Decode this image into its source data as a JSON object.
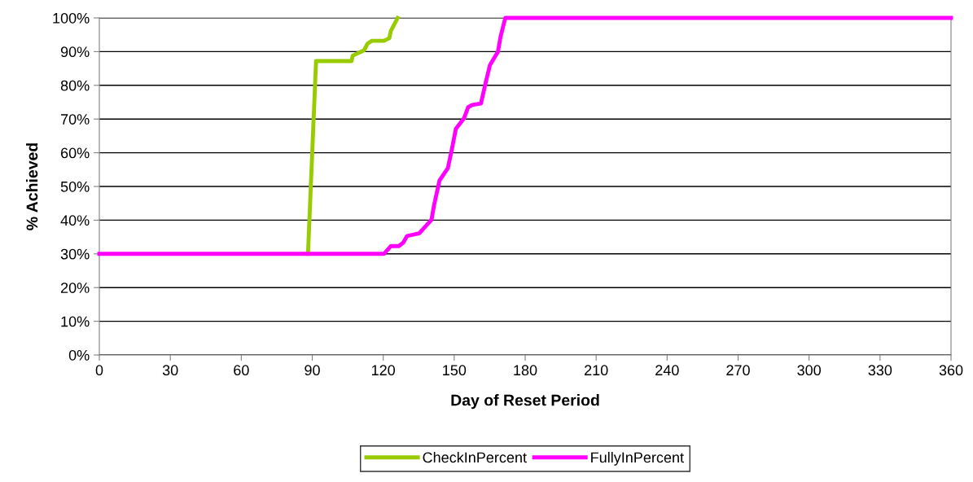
{
  "chart_data": {
    "type": "line",
    "xlabel": "Day of Reset Period",
    "ylabel": "% Achieved",
    "series": [
      {
        "name": "CheckInPercent",
        "color": "#99cc00",
        "x": [
          88.2,
          91.6,
          106.6,
          107.1,
          111.9,
          113.4,
          115.2,
          120.3,
          122.6,
          123.2,
          126.1
        ],
        "values": [
          30,
          87.2,
          87.2,
          88.8,
          90.4,
          92.4,
          93.2,
          93.2,
          94.0,
          96.1,
          100
        ]
      },
      {
        "name": "FullyInPercent",
        "color": "#ff00ff",
        "x": [
          0,
          120.3,
          123.2,
          126.6,
          128.4,
          130.1,
          135.2,
          140.4,
          141.5,
          143.8,
          147.3,
          149.0,
          150.7,
          154.2,
          155.9,
          157.6,
          161.3,
          163.3,
          165.1,
          168.5,
          169.6,
          171.6,
          360
        ],
        "values": [
          30,
          30,
          32.3,
          32.3,
          33.3,
          35.3,
          36.1,
          40.1,
          44.5,
          51.8,
          55.4,
          61.0,
          67.1,
          70.3,
          73.5,
          74.2,
          74.6,
          80.8,
          86.0,
          90.0,
          94.4,
          100,
          100
        ]
      }
    ],
    "xlim": [
      0,
      360
    ],
    "xticks": [
      0,
      30,
      60,
      90,
      120,
      150,
      180,
      210,
      240,
      270,
      300,
      330,
      360
    ],
    "ylim": [
      0,
      100
    ],
    "yticks": [
      {
        "value": 0,
        "label": "0%"
      },
      {
        "value": 10,
        "label": "10%"
      },
      {
        "value": 20,
        "label": "20%"
      },
      {
        "value": 30,
        "label": "30%"
      },
      {
        "value": 40,
        "label": "40%"
      },
      {
        "value": 50,
        "label": "50%"
      },
      {
        "value": 60,
        "label": "60%"
      },
      {
        "value": 70,
        "label": "70%"
      },
      {
        "value": 80,
        "label": "80%"
      },
      {
        "value": 90,
        "label": "90%"
      },
      {
        "value": 100,
        "label": "100%"
      }
    ],
    "grid": "y",
    "legend": "bottom",
    "marker": "none",
    "line_style": "solid"
  }
}
